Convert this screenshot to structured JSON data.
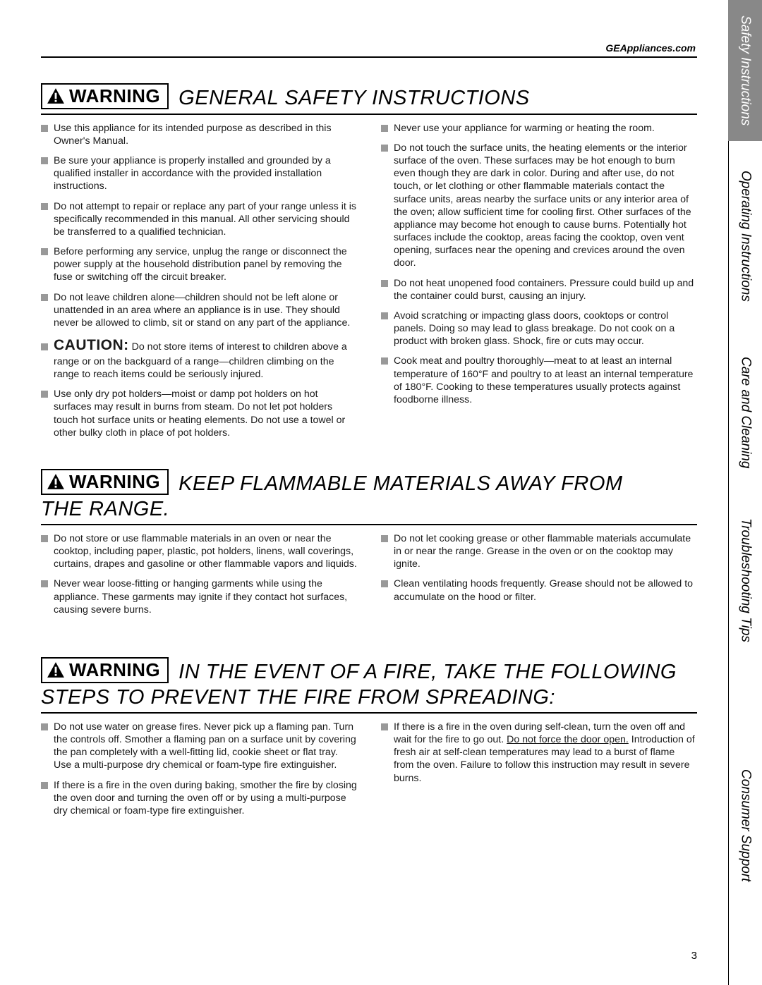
{
  "header_link": "GEAppliances.com",
  "page_number": "3",
  "warning_label": "WARNING",
  "tabs": {
    "t1": "Safety Instructions",
    "t2": "Operating Instructions",
    "t3": "Care and Cleaning",
    "t4": "Troubleshooting Tips",
    "t5": "Consumer Support"
  },
  "section1": {
    "title": "GENERAL SAFETY INSTRUCTIONS",
    "left": [
      "Use this appliance for its intended purpose as described in this Owner's Manual.",
      "Be sure your appliance is properly installed and grounded\nby a qualified installer in accordance with the provided installation instructions.",
      "Do not attempt to repair or replace any part of your range unless it is specifically recommended in this manual. All other servicing should be transferred to a qualified technician.",
      "Before performing any service, unplug the range or disconnect the power supply at the household distribution panel by removing the fuse or switching off the circuit breaker.",
      "Do not leave children alone—children should not be left alone or unattended in an area where an appliance is in use. They should never be allowed to climb, sit or stand on any part of the appliance."
    ],
    "caution_label": "CAUTION:",
    "caution_text": " Do not store items of interest to children above a range or on the backguard of a range—children climbing on the range to reach items could be seriously injured.",
    "left_after": [
      "Use only dry pot holders—moist or damp pot holders on hot surfaces may result in burns from steam. Do not let pot holders touch hot surface units or heating elements. Do not use a towel or other bulky cloth in place of pot holders."
    ],
    "right": [
      "Never use your appliance for warming or heating the room.",
      "Do not touch the surface units, the heating elements or the interior surface of the oven. These surfaces may be hot enough to burn even though they are dark in color. During and after use, do not touch, or let clothing or other flammable materials contact the surface units, areas nearby the surface units or any interior area of the oven; allow sufficient time for cooling first. Other surfaces of the appliance may become hot enough to cause burns. Potentially hot surfaces include the cooktop, areas facing the cooktop, oven vent opening, surfaces near the opening and crevices around the oven door.",
      "Do not heat unopened food containers. Pressure could build up and the container could burst, causing an injury.",
      "Avoid scratching or impacting glass doors, cooktops or control panels. Doing so may lead to glass breakage. Do not cook on a product with broken glass. Shock, fire or cuts may occur.",
      "Cook meat and poultry thoroughly—meat to at least an internal temperature of 160°F and poultry to at least an internal temperature of 180°F. Cooking to these temperatures usually protects against foodborne illness."
    ]
  },
  "section2": {
    "title": "KEEP FLAMMABLE MATERIALS AWAY FROM",
    "title_cont": "THE RANGE.",
    "left": [
      "Do not store or use flammable materials in an oven or near the cooktop, including paper, plastic, pot holders, linens, wall coverings, curtains, drapes and gasoline or other flammable vapors and liquids.",
      "Never wear loose-fitting or hanging garments while using the appliance. These garments may ignite if they contact hot surfaces, causing severe burns."
    ],
    "right": [
      "Do not let cooking grease or other flammable materials accumulate in or near the range. Grease in the oven or on the cooktop may ignite.",
      "Clean ventilating hoods frequently. Grease should not be allowed to accumulate on the hood or filter."
    ]
  },
  "section3": {
    "title": "IN THE EVENT OF A FIRE, TAKE THE FOLLOWING",
    "title_cont": "STEPS TO PREVENT THE FIRE FROM SPREADING:",
    "left": [
      "Do not use water on grease fires. Never pick up a flaming pan. Turn the controls off. Smother a flaming pan on a surface unit by covering the pan completely with a well-fitting lid, cookie sheet or flat tray. Use a multi-purpose dry chemical or foam-type fire extinguisher.",
      "If there is a fire in the oven during baking, smother the fire by closing the oven door and turning the oven off or by using a multi-purpose dry chemical or foam-type fire extinguisher."
    ],
    "right_pre": "If there is a fire in the oven during self-clean, turn the oven off and wait for the fire to go out. ",
    "right_underline": "Do not force the door open.",
    "right_post": " Introduction of fresh air at self-clean temperatures may lead to a burst of flame from the oven. Failure to follow this instruction may result in severe burns."
  }
}
